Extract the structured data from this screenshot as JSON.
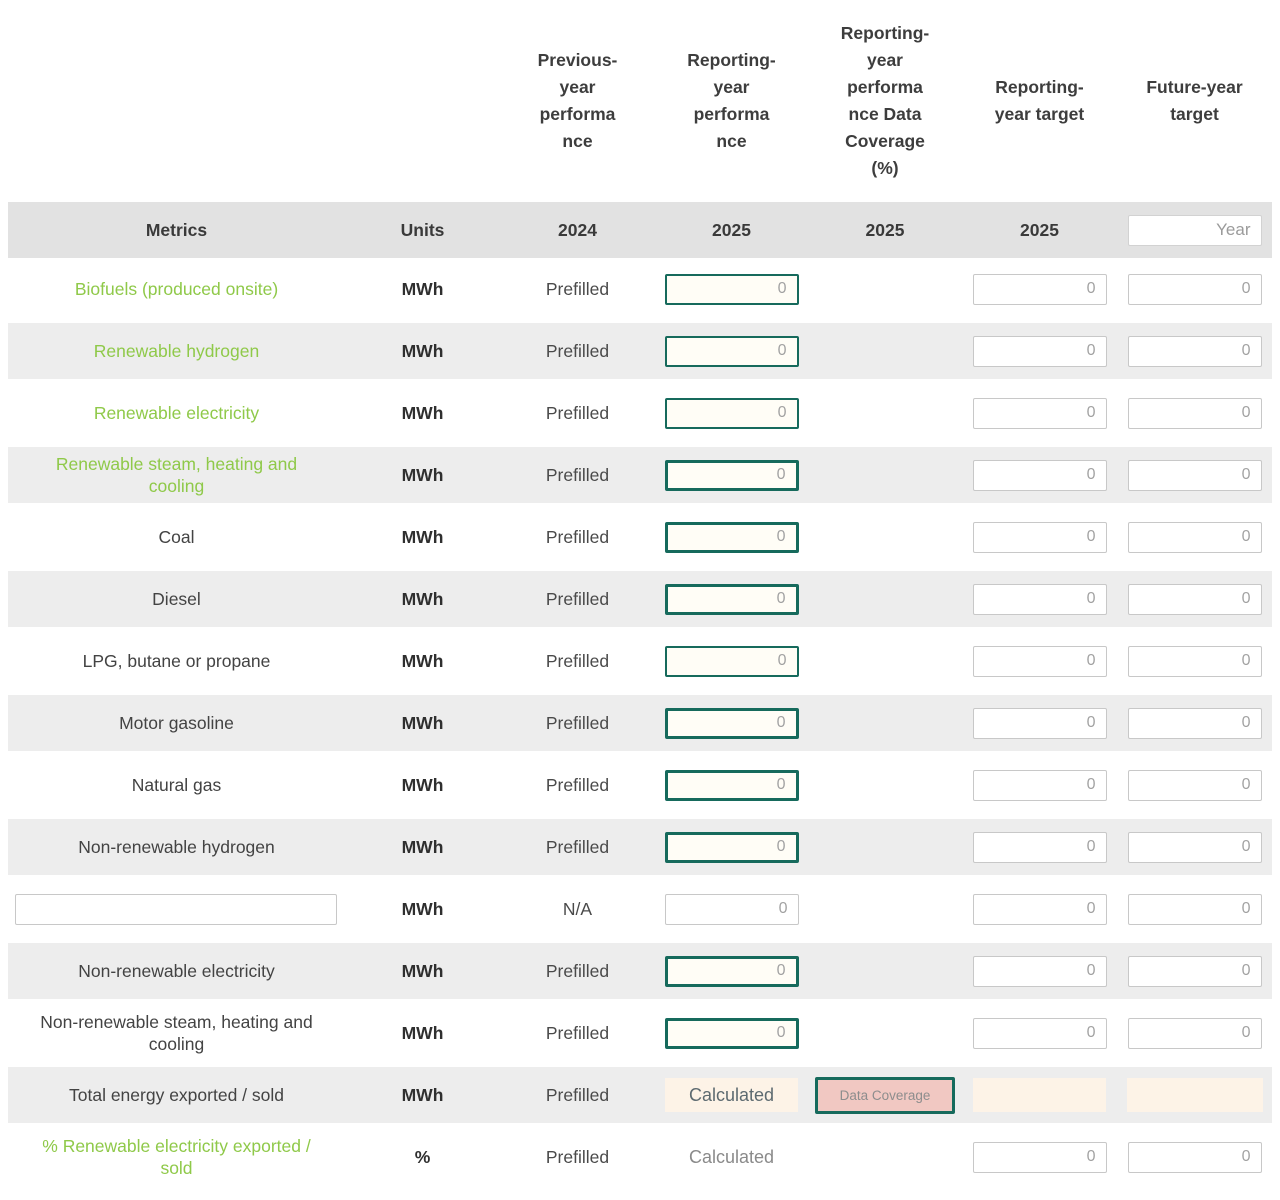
{
  "columns": [
    {
      "top": "",
      "label": "Metrics"
    },
    {
      "top": "",
      "label": "Units"
    },
    {
      "top": "Previous-\nyear\nperforma\nnce",
      "label": "2024"
    },
    {
      "top": "Reporting-\nyear\nperforma\nnce",
      "label": "2025"
    },
    {
      "top": "Reporting-\nyear\nperforma\nnce Data\nCoverage\n(%)",
      "label": "2025"
    },
    {
      "top": "Reporting-\nyear target",
      "label": "2025"
    },
    {
      "top": "Future-year\ntarget",
      "year_placeholder": "Year"
    }
  ],
  "labels": {
    "calculated": "Calculated",
    "data_coverage": "Data Coverage"
  },
  "common": {
    "zero_placeholder": "0"
  },
  "colors": {
    "accent_green": "#8fc949",
    "teal_border": "#166a5c",
    "pink_button": "#f1c8c2",
    "peach_calculated": "#fdf3e7",
    "gray_row": "#ededed",
    "header_band": "#e2e2e2"
  },
  "rows": [
    {
      "metric": "Biofuels (produced onsite)",
      "units": "MWh",
      "previous": "Prefilled"
    },
    {
      "metric": "Renewable hydrogen",
      "units": "MWh",
      "previous": "Prefilled"
    },
    {
      "metric": "Renewable electricity",
      "units": "MWh",
      "previous": "Prefilled"
    },
    {
      "metric": "Renewable steam, heating and cooling",
      "units": "MWh",
      "previous": "Prefilled"
    },
    {
      "metric": "Coal",
      "units": "MWh",
      "previous": "Prefilled"
    },
    {
      "metric": "Diesel",
      "units": "MWh",
      "previous": "Prefilled"
    },
    {
      "metric": "LPG, butane or propane",
      "units": "MWh",
      "previous": "Prefilled"
    },
    {
      "metric": "Motor gasoline",
      "units": "MWh",
      "previous": "Prefilled"
    },
    {
      "metric": "Natural gas",
      "units": "MWh",
      "previous": "Prefilled"
    },
    {
      "metric": "Non-renewable hydrogen",
      "units": "MWh",
      "previous": "Prefilled"
    },
    {
      "metric": "",
      "units": "MWh",
      "previous": "N/A"
    },
    {
      "metric": "Non-renewable electricity",
      "units": "MWh",
      "previous": "Prefilled"
    },
    {
      "metric": "Non-renewable steam, heating and cooling",
      "units": "MWh",
      "previous": "Prefilled"
    },
    {
      "metric": "Total energy exported / sold",
      "units": "MWh",
      "previous": "Prefilled"
    },
    {
      "metric": "% Renewable electricity exported / sold",
      "units": "%",
      "previous": "Prefilled"
    }
  ]
}
